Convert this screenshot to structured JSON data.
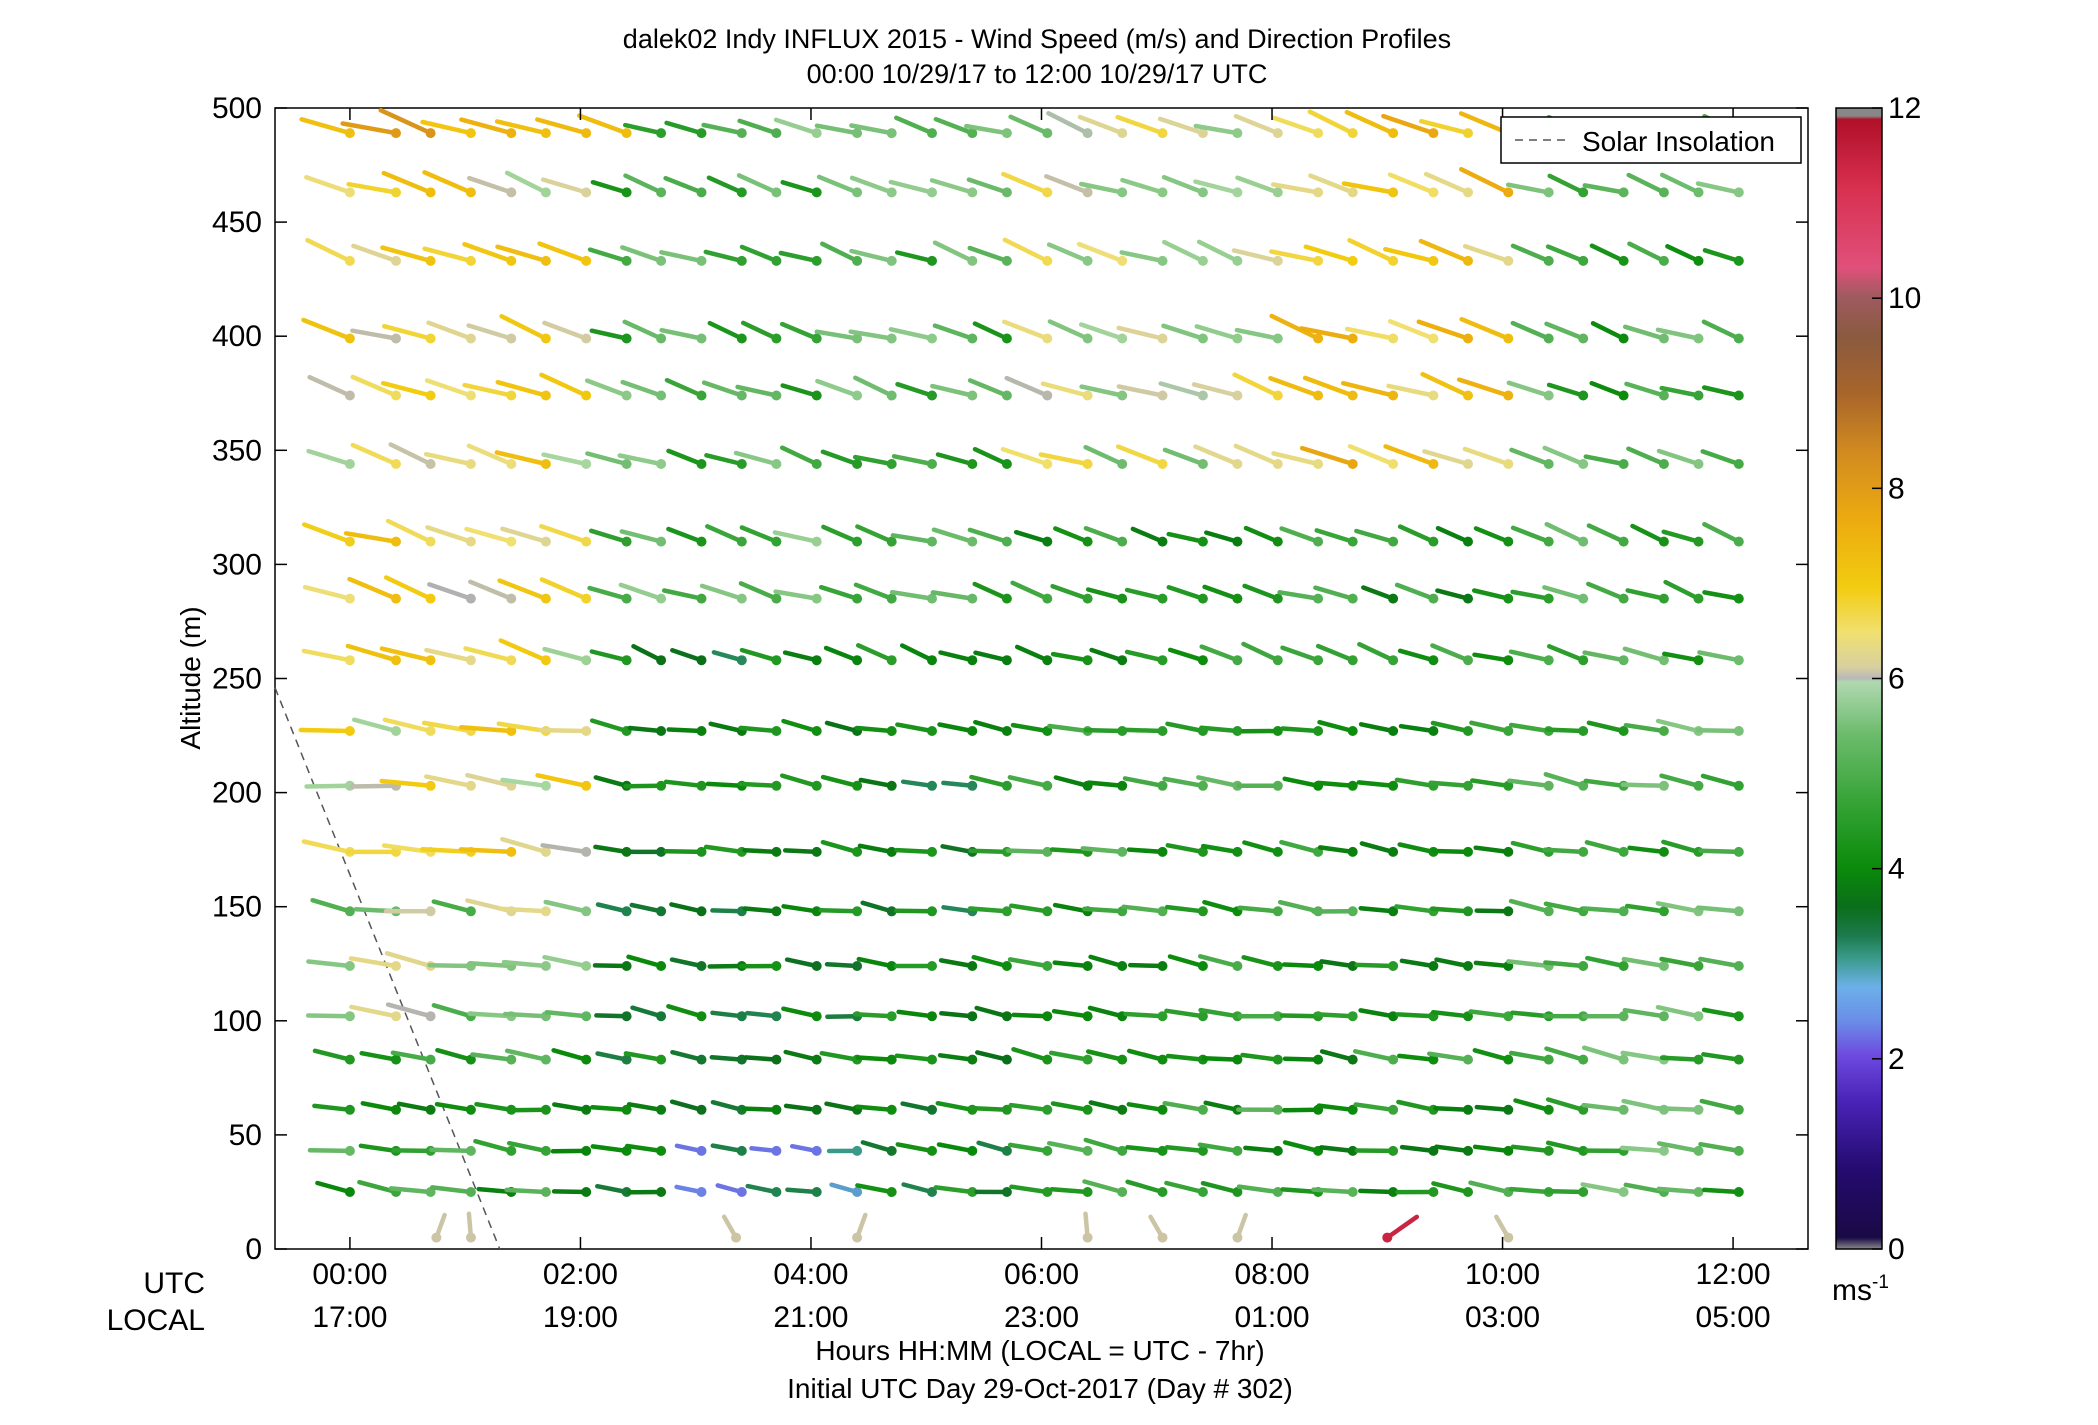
{
  "chart_data": {
    "type": "vector-field",
    "title_line1": "dalek02 Indy INFLUX 2015 - Wind Speed (m/s) and Direction Profiles",
    "title_line2": "00:00 10/29/17 to 12:00 10/29/17  UTC",
    "ylabel": "Altitude (m)",
    "xlabel_line1": "Hours HH:MM  (LOCAL = UTC - 7hr)",
    "xlabel_line2": "Initial UTC Day 29-Oct-2017 (Day # 302)",
    "utc_row_label": "UTC",
    "local_row_label": "LOCAL",
    "xlim_hours": [
      -0.65,
      12.65
    ],
    "ylim": [
      0,
      500
    ],
    "y_ticks": [
      0,
      50,
      100,
      150,
      200,
      250,
      300,
      350,
      400,
      450,
      500
    ],
    "x_ticks_utc": [
      "00:00",
      "02:00",
      "04:00",
      "06:00",
      "08:00",
      "10:00",
      "12:00"
    ],
    "x_ticks_local": [
      "17:00",
      "19:00",
      "21:00",
      "23:00",
      "01:00",
      "03:00",
      "05:00"
    ],
    "legend": "Solar Insolation",
    "legend_position": "top-right",
    "colorbar": {
      "min": 0,
      "max": 12,
      "ticks": [
        0,
        2,
        4,
        6,
        8,
        10,
        12
      ],
      "unit": "ms-1"
    },
    "solar_insolation_line": {
      "x_hours": [
        -0.65,
        1.3
      ],
      "y": [
        246,
        0
      ]
    },
    "altitudes": [
      25,
      43,
      61,
      83,
      102,
      124,
      148,
      174,
      203,
      227,
      258,
      285,
      310,
      344,
      374,
      399,
      433,
      463,
      489
    ],
    "profile_times_hours": [
      0.0,
      0.4,
      0.7,
      1.05,
      1.4,
      1.7,
      2.05,
      2.4,
      2.7,
      3.05,
      3.4,
      3.7,
      4.05,
      4.4,
      4.7,
      5.05,
      5.4,
      5.7,
      6.05,
      6.4,
      6.7,
      7.05,
      7.4,
      7.7,
      8.05,
      8.4,
      8.7,
      9.05,
      9.4,
      9.7,
      10.05,
      10.4,
      10.7,
      11.05,
      11.4,
      11.7,
      12.05
    ],
    "surface_vectors": [
      {
        "time": 0.75,
        "speed": 6.1
      },
      {
        "time": 1.05,
        "speed": 6.1
      },
      {
        "time": 3.35,
        "speed": 6.1
      },
      {
        "time": 4.4,
        "speed": 6.1
      },
      {
        "time": 6.4,
        "speed": 6.1
      },
      {
        "time": 7.05,
        "speed": 6.1
      },
      {
        "time": 7.7,
        "speed": 6.1
      },
      {
        "time": 9.0,
        "speed": 11.5
      },
      {
        "time": 10.05,
        "speed": 6.1
      }
    ]
  }
}
